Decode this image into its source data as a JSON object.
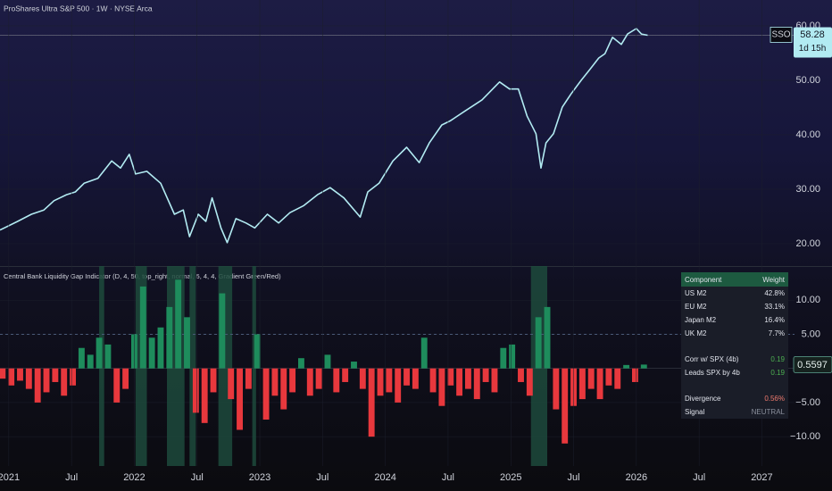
{
  "chart_data": [
    {
      "type": "line",
      "title": "ProShares Ultra S&P 500 · 1W · NYSE Arca",
      "symbol": "SSO",
      "countdown": "1d 15h",
      "color": "#b2ebf2",
      "x": [
        2020.93,
        2021.07,
        2021.18,
        2021.28,
        2021.36,
        2021.46,
        2021.53,
        2021.6,
        2021.71,
        2021.82,
        2021.89,
        2021.96,
        2022.01,
        2022.1,
        2022.21,
        2022.32,
        2022.39,
        2022.44,
        2022.51,
        2022.57,
        2022.62,
        2022.69,
        2022.74,
        2022.81,
        2022.89,
        2022.96,
        2023.06,
        2023.15,
        2023.24,
        2023.35,
        2023.46,
        2023.56,
        2023.67,
        2023.8,
        2023.86,
        2023.95,
        2024.06,
        2024.17,
        2024.27,
        2024.35,
        2024.45,
        2024.52,
        2024.63,
        2024.77,
        2024.91,
        2024.99,
        2025.06,
        2025.13,
        2025.2,
        2025.24,
        2025.28,
        2025.34,
        2025.41,
        2025.48,
        2025.56,
        2025.63,
        2025.7,
        2025.75,
        2025.81,
        2025.88,
        2025.93,
        2026.0,
        2026.04,
        2026.09
      ],
      "values": [
        22.5,
        24.1,
        25.4,
        26.2,
        27.9,
        29.0,
        29.5,
        31.1,
        32.0,
        35.2,
        33.9,
        36.4,
        32.8,
        33.3,
        31.1,
        25.4,
        26.2,
        21.3,
        25.4,
        24.1,
        28.4,
        22.9,
        20.2,
        24.6,
        23.8,
        22.9,
        25.4,
        23.8,
        25.7,
        27.0,
        29.0,
        30.3,
        28.4,
        24.9,
        29.5,
        31.1,
        35.2,
        37.7,
        34.9,
        38.5,
        41.8,
        42.6,
        44.3,
        46.4,
        49.7,
        48.4,
        48.4,
        43.4,
        40.2,
        33.9,
        38.5,
        40.2,
        45.1,
        47.5,
        50.0,
        52.0,
        54.1,
        54.9,
        57.9,
        56.6,
        58.5,
        59.5,
        58.5,
        58.28
      ],
      "xlim": [
        2020.93,
        2027.26
      ],
      "ylim": [
        15.9,
        64.75
      ],
      "yticks": [
        {
          "value": 20,
          "label": "20.00"
        },
        {
          "value": 30,
          "label": "30.00"
        },
        {
          "value": 40,
          "label": "40.00"
        },
        {
          "value": 50,
          "label": "50.00"
        },
        {
          "value": 60,
          "label": "60.00"
        }
      ]
    },
    {
      "type": "bar",
      "title": "Central Bank Liquidity Gap Indicator (D, 4, 50, top_right, normal, 5, 4, 4, Gradient Green/Red)",
      "up_color": "#1e8c5c",
      "down_color": "#e8383d",
      "zone_color": "#1d4a3c",
      "x": [
        2020.95,
        2021.02,
        2021.09,
        2021.16,
        2021.23,
        2021.3,
        2021.37,
        2021.44,
        2021.51,
        2021.58,
        2021.65,
        2021.72,
        2021.79,
        2021.86,
        2021.93,
        2022.0,
        2022.07,
        2022.14,
        2022.21,
        2022.28,
        2022.35,
        2022.42,
        2022.49,
        2022.56,
        2022.63,
        2022.7,
        2022.77,
        2022.84,
        2022.91,
        2022.98,
        2023.05,
        2023.12,
        2023.19,
        2023.26,
        2023.33,
        2023.4,
        2023.47,
        2023.54,
        2023.61,
        2023.68,
        2023.75,
        2023.82,
        2023.89,
        2023.96,
        2024.03,
        2024.1,
        2024.17,
        2024.24,
        2024.31,
        2024.38,
        2024.45,
        2024.52,
        2024.59,
        2024.66,
        2024.73,
        2024.8,
        2024.87,
        2024.94,
        2025.01,
        2025.08,
        2025.15,
        2025.22,
        2025.29,
        2025.36,
        2025.43,
        2025.5,
        2025.57,
        2025.64,
        2025.71,
        2025.78,
        2025.85,
        2025.92,
        2025.99,
        2026.06
      ],
      "values": [
        -1.5,
        -2.5,
        -1.8,
        -3.0,
        -5.0,
        -3.5,
        -2.0,
        -4.0,
        -2.5,
        3.0,
        2.0,
        4.5,
        3.5,
        -5.0,
        -3.0,
        5.0,
        12.0,
        4.5,
        6.0,
        9.0,
        13.0,
        7.5,
        -6.5,
        -8.0,
        -3.5,
        11.0,
        -4.5,
        -9.0,
        -3.0,
        5.0,
        -7.5,
        -4.0,
        -6.0,
        -3.5,
        1.5,
        -4.0,
        -3.0,
        2.0,
        -3.5,
        -2.0,
        1.0,
        -3.0,
        -10.0,
        -4.0,
        -3.5,
        -5.0,
        -2.5,
        -3.0,
        4.5,
        -3.5,
        -5.5,
        -2.5,
        -4.0,
        -3.0,
        -4.5,
        -2.0,
        -3.5,
        3.0,
        3.5,
        -2.0,
        -4.0,
        7.5,
        9.0,
        -6.0,
        -11.0,
        -5.5,
        -4.5,
        -3.0,
        -4.5,
        -2.5,
        -3.0,
        0.5,
        -2.0,
        0.5597
      ],
      "signal_zones": [
        [
          2021.72,
          2021.76
        ],
        [
          2022.01,
          2022.1
        ],
        [
          2022.26,
          2022.4
        ],
        [
          2022.44,
          2022.49
        ],
        [
          2022.67,
          2022.78
        ],
        [
          2022.94,
          2022.97
        ],
        [
          2025.16,
          2025.29
        ]
      ],
      "threshold": 5,
      "xlim": [
        2020.93,
        2027.26
      ],
      "ylim": [
        -14.3,
        15.0
      ],
      "yticks": [
        {
          "value": -10,
          "label": "−10.00"
        },
        {
          "value": -5,
          "label": "−5.00"
        },
        {
          "value": 5,
          "label": "5.00"
        },
        {
          "value": 10,
          "label": "10.00"
        }
      ],
      "xticks": [
        2021,
        {
          "value": 2021.5,
          "label": "Jul"
        },
        2022,
        {
          "value": 2022.5,
          "label": "Jul"
        },
        2023,
        {
          "value": 2023.5,
          "label": "Jul"
        },
        2024,
        {
          "value": 2024.5,
          "label": "Jul"
        },
        2025,
        {
          "value": 2025.5,
          "label": "Jul"
        },
        2026,
        {
          "value": 2026.5,
          "label": "Jul"
        },
        2027
      ],
      "table": {
        "header": [
          "Component",
          "Weight"
        ],
        "rows": [
          [
            "US M2",
            "42.8%"
          ],
          [
            "EU M2",
            "33.1%"
          ],
          [
            "Japan M2",
            "16.4%"
          ],
          [
            "UK M2",
            "7.7%"
          ],
          [
            "Corr w/ SPX (4b)",
            "0.19"
          ],
          [
            "Leads SPX by 4b",
            "0.19"
          ],
          [
            "Divergence",
            "0.56%"
          ],
          [
            "Signal",
            "NEUTRAL"
          ]
        ]
      }
    }
  ]
}
